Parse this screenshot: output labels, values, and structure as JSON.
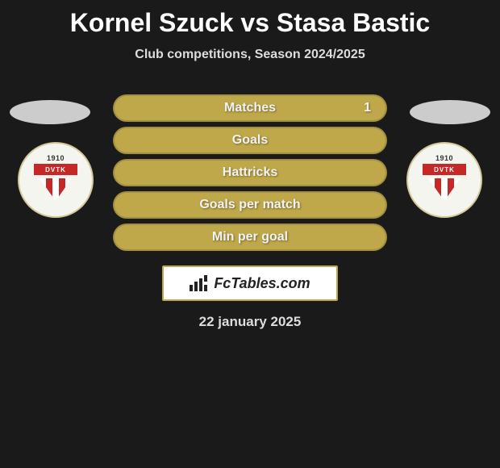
{
  "title": "Kornel Szuck vs Stasa Bastic",
  "subtitle": "Club competitions, Season 2024/2025",
  "stats": [
    {
      "label": "Matches",
      "value": "1",
      "bg_color": "#bfa84a",
      "text_color": "#f2f2f2"
    },
    {
      "label": "Goals",
      "value": "",
      "bg_color": "#bfa84a",
      "text_color": "#f2f2f2"
    },
    {
      "label": "Hattricks",
      "value": "",
      "bg_color": "#bfa84a",
      "text_color": "#f2f2f2"
    },
    {
      "label": "Goals per match",
      "value": "",
      "bg_color": "#bfa84a",
      "text_color": "#f2f2f2"
    },
    {
      "label": "Min per goal",
      "value": "",
      "bg_color": "#bfa84a",
      "text_color": "#f2f2f2"
    }
  ],
  "player_left": {
    "oval_color": "#cccccc",
    "club": {
      "year": "1910",
      "name": "DVTK",
      "primary": "#c62828"
    }
  },
  "player_right": {
    "oval_color": "#cccccc",
    "club": {
      "year": "1910",
      "name": "DVTK",
      "primary": "#c62828"
    }
  },
  "brand": "FcTables.com",
  "footer_date": "22 january 2025",
  "colors": {
    "page_bg": "#1a1a1a",
    "title_color": "#ffffff",
    "subtitle_color": "#dddddd",
    "brand_border": "#bfa84a",
    "brand_bg": "#ffffff",
    "brand_text": "#222222"
  }
}
